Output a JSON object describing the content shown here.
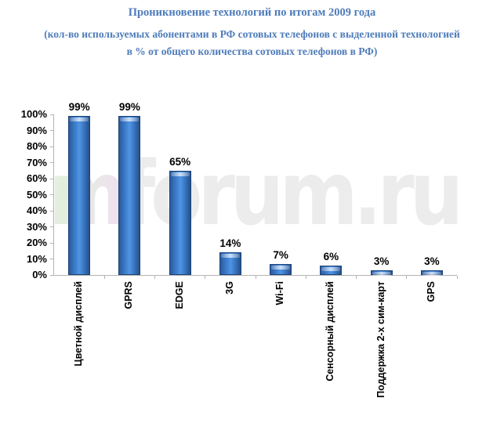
{
  "header": {
    "title": "Проникновение технологий по итогам 2009 года",
    "subtitle_line1": "(кол-во используемых абонентами в РФ сотовых телефонов с выделенной технологией",
    "subtitle_line2": "в % от общего количества сотовых телефонов в РФ)",
    "title_color": "#4e7cbb"
  },
  "watermark": {
    "prefix": "m",
    "rest": "forum.ru"
  },
  "chart_data": {
    "type": "bar",
    "title": "Проникновение технологий по итогам 2009 года",
    "categories": [
      "Цветной дисплей",
      "GPRS",
      "EDGE",
      "3G",
      "Wi-Fi",
      "Сенсорный дисплей",
      "Поддержка 2-х сим-карт",
      "GPS"
    ],
    "values": [
      99,
      99,
      65,
      14,
      7,
      6,
      3,
      3
    ],
    "data_labels": [
      "99%",
      "99%",
      "65%",
      "14%",
      "7%",
      "6%",
      "3%",
      "3%"
    ],
    "xlabel": "",
    "ylabel": "",
    "ylim": [
      0,
      100
    ],
    "ytick_step": 10,
    "ytick_labels": [
      "0%",
      "10%",
      "20%",
      "30%",
      "40%",
      "50%",
      "60%",
      "70%",
      "80%",
      "90%",
      "100%"
    ],
    "grid": false,
    "legend": "none",
    "bar_color": "#3e7ecb",
    "bar_edge_color": "#1d4377",
    "axis_color": "#b3b3b3",
    "watermark_color": "#ececec"
  }
}
